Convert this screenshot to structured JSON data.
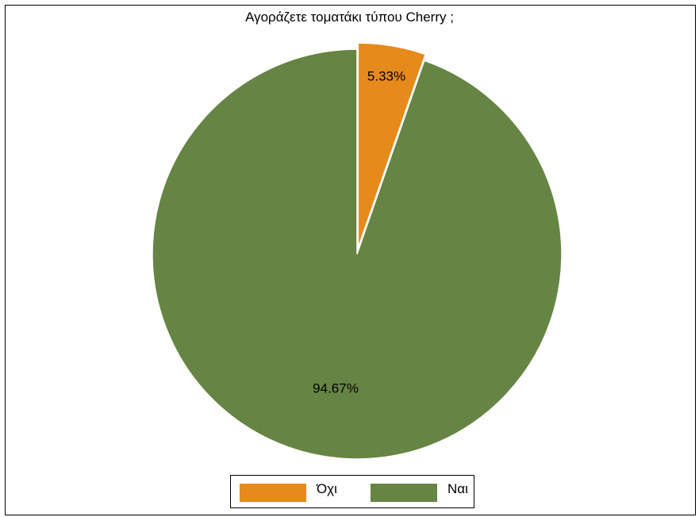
{
  "chart_data": {
    "type": "pie",
    "title": "Αγοράζετε τοματάκι τύπου Cherry ;",
    "slices": [
      {
        "label": "Όχι",
        "value": 5.33,
        "display": "5.33%",
        "color": "#e58a1b",
        "exploded": true
      },
      {
        "label": "Ναι",
        "value": 94.67,
        "display": "94.67%",
        "color": "#668443",
        "exploded": false
      }
    ],
    "start_angle": "12 o'clock",
    "direction": "clockwise",
    "legend_position": "bottom"
  }
}
